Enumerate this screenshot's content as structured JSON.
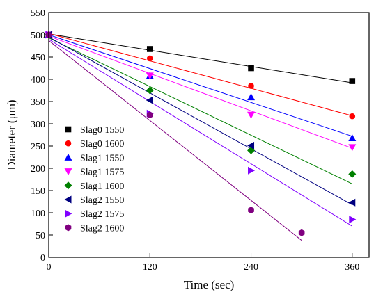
{
  "chart_data": {
    "type": "scatter",
    "title": "",
    "xlabel": "Time (sec)",
    "ylabel": "Diameter (μm)",
    "xlim": [
      0,
      380
    ],
    "ylim": [
      0,
      550
    ],
    "xticks": [
      0,
      120,
      240,
      360
    ],
    "yticks": [
      0,
      50,
      100,
      150,
      200,
      250,
      300,
      350,
      400,
      450,
      500,
      550
    ],
    "grid": false,
    "legend_position": "left-bottom",
    "series": [
      {
        "name": "Slag0 1550",
        "marker": "square",
        "color": "#000000",
        "x": [
          0,
          120,
          240,
          360
        ],
        "y": [
          500,
          468,
          425,
          396
        ],
        "fit": [
          [
            0,
            502
          ],
          [
            360,
            392
          ]
        ]
      },
      {
        "name": "Slag0 1600",
        "marker": "circle",
        "color": "#ff0000",
        "x": [
          0,
          120,
          240,
          360
        ],
        "y": [
          500,
          447,
          385,
          317
        ],
        "fit": [
          [
            0,
            503
          ],
          [
            360,
            318
          ]
        ]
      },
      {
        "name": "Slag1 1550",
        "marker": "triangle-up",
        "color": "#0000ff",
        "x": [
          0,
          120,
          240,
          360
        ],
        "y": [
          500,
          408,
          360,
          268
        ],
        "fit": [
          [
            0,
            500
          ],
          [
            360,
            272
          ]
        ]
      },
      {
        "name": "Slag1 1575",
        "marker": "triangle-down",
        "color": "#ff00ff",
        "x": [
          0,
          120,
          240,
          360
        ],
        "y": [
          500,
          408,
          320,
          247
        ],
        "fit": [
          [
            0,
            497
          ],
          [
            360,
            245
          ]
        ]
      },
      {
        "name": "Slag1 1600",
        "marker": "diamond",
        "color": "#008000",
        "x": [
          0,
          120,
          240,
          360
        ],
        "y": [
          500,
          375,
          240,
          187
        ],
        "fit": [
          [
            0,
            493
          ],
          [
            360,
            165
          ]
        ]
      },
      {
        "name": "Slag2 1550",
        "marker": "triangle-left",
        "color": "#000080",
        "x": [
          0,
          120,
          240,
          360
        ],
        "y": [
          500,
          353,
          251,
          123
        ],
        "fit": [
          [
            0,
            495
          ],
          [
            360,
            118
          ]
        ]
      },
      {
        "name": "Slag2 1575",
        "marker": "triangle-right",
        "color": "#8000ff",
        "x": [
          0,
          120,
          240,
          360
        ],
        "y": [
          500,
          323,
          195,
          85
        ],
        "fit": [
          [
            0,
            490
          ],
          [
            360,
            70
          ]
        ]
      },
      {
        "name": "Slag2 1600",
        "marker": "hexagon",
        "color": "#800080",
        "x": [
          0,
          120,
          240,
          300
        ],
        "y": [
          500,
          320,
          106,
          55
        ],
        "fit": [
          [
            0,
            487
          ],
          [
            300,
            38
          ]
        ]
      }
    ]
  }
}
